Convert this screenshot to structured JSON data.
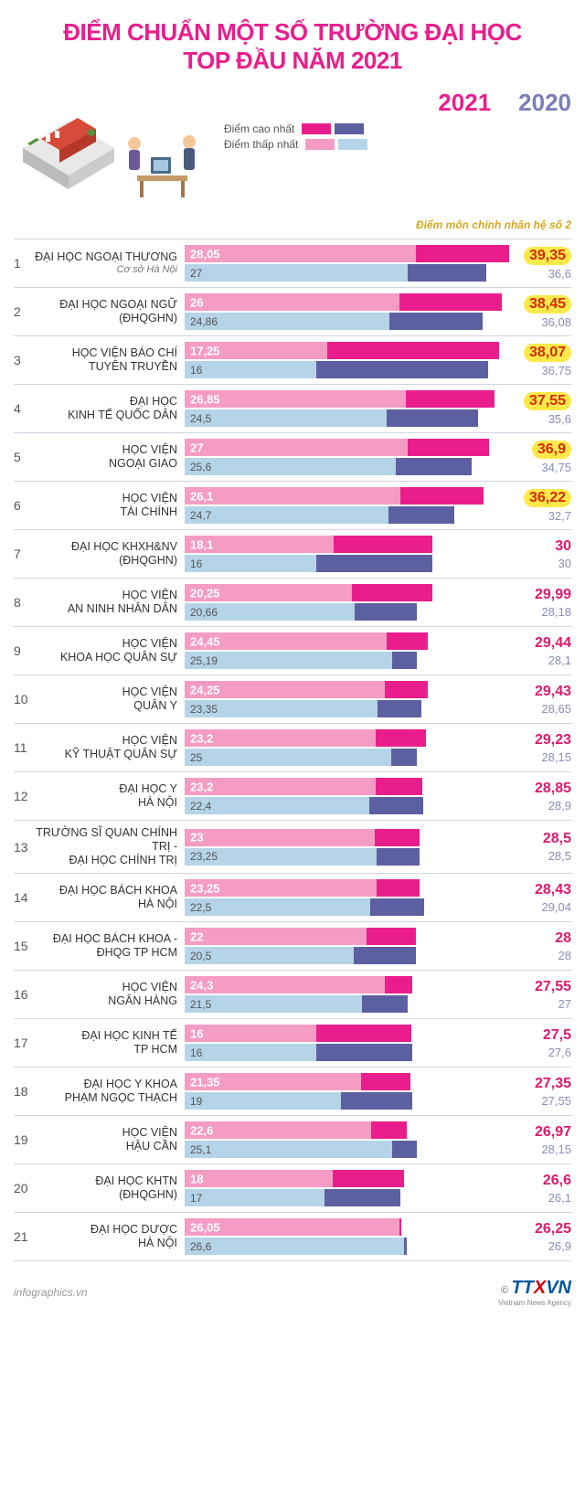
{
  "title_line1": "ĐIỂM CHUẨN MỘT SỐ TRƯỜNG ĐẠI HỌC",
  "title_line2": "TOP ĐẦU NĂM 2021",
  "legend": {
    "year_2021": "2021",
    "year_2020": "2020",
    "highest": "Điểm cao nhất",
    "lowest": "Điểm thấp nhất",
    "note": "Điểm môn chính nhân hệ số 2"
  },
  "colors": {
    "hi_2021": "#e91e8c",
    "lo_2021": "#f59cc4",
    "hi_2020": "#5c5fa0",
    "lo_2020": "#b5d4e8",
    "highlight_bg": "#ffe94a",
    "max_2021_text": "#e0186f",
    "max_2021_hl_text": "#d42a00",
    "max_2020_text": "#8a8db8"
  },
  "scale_max": 40,
  "rows": [
    {
      "rank": "1",
      "name1": "ĐẠI HỌC NGOẠI THƯƠNG",
      "name2": "Cơ sở Hà Nội",
      "sub": true,
      "lo21": "28,05",
      "lo21v": 28.05,
      "lo20": "27",
      "lo20v": 27,
      "hi21": "39,35",
      "hi21v": 39.35,
      "hi20": "36,6",
      "hi20v": 36.6,
      "hl": true
    },
    {
      "rank": "2",
      "name1": "ĐẠI HỌC NGOẠI NGỮ",
      "name2": "(ĐHQGHN)",
      "lo21": "26",
      "lo21v": 26,
      "lo20": "24,86",
      "lo20v": 24.86,
      "hi21": "38,45",
      "hi21v": 38.45,
      "hi20": "36,08",
      "hi20v": 36.08,
      "hl": true
    },
    {
      "rank": "3",
      "name1": "HỌC VIỆN BÁO CHÍ",
      "name2": "TUYÊN TRUYỀN",
      "lo21": "17,25",
      "lo21v": 17.25,
      "lo20": "16",
      "lo20v": 16,
      "hi21": "38,07",
      "hi21v": 38.07,
      "hi20": "36,75",
      "hi20v": 36.75,
      "hl": true
    },
    {
      "rank": "4",
      "name1": "ĐẠI HỌC",
      "name2": "KINH TẾ QUỐC DÂN",
      "lo21": "26,85",
      "lo21v": 26.85,
      "lo20": "24,5",
      "lo20v": 24.5,
      "hi21": "37,55",
      "hi21v": 37.55,
      "hi20": "35,6",
      "hi20v": 35.6,
      "hl": true
    },
    {
      "rank": "5",
      "name1": "HỌC VIỆN",
      "name2": "NGOẠI GIAO",
      "lo21": "27",
      "lo21v": 27,
      "lo20": "25,6",
      "lo20v": 25.6,
      "hi21": "36,9",
      "hi21v": 36.9,
      "hi20": "34,75",
      "hi20v": 34.75,
      "hl": true
    },
    {
      "rank": "6",
      "name1": "HỌC VIỆN",
      "name2": "TÀI CHÍNH",
      "lo21": "26,1",
      "lo21v": 26.1,
      "lo20": "24,7",
      "lo20v": 24.7,
      "hi21": "36,22",
      "hi21v": 36.22,
      "hi20": "32,7",
      "hi20v": 32.7,
      "hl": true
    },
    {
      "rank": "7",
      "name1": "ĐẠI HỌC KHXH&NV",
      "name2": "(ĐHQGHN)",
      "lo21": "18,1",
      "lo21v": 18.1,
      "lo20": "16",
      "lo20v": 16,
      "hi21": "30",
      "hi21v": 30,
      "hi20": "30",
      "hi20v": 30,
      "hl": false
    },
    {
      "rank": "8",
      "name1": "HỌC VIỆN",
      "name2": "AN NINH NHÂN DÂN",
      "lo21": "20,25",
      "lo21v": 20.25,
      "lo20": "20,66",
      "lo20v": 20.66,
      "hi21": "29,99",
      "hi21v": 29.99,
      "hi20": "28,18",
      "hi20v": 28.18,
      "hl": false
    },
    {
      "rank": "9",
      "name1": "HỌC VIỆN",
      "name2": "KHOA HỌC QUÂN SỰ",
      "lo21": "24,45",
      "lo21v": 24.45,
      "lo20": "25,19",
      "lo20v": 25.19,
      "hi21": "29,44",
      "hi21v": 29.44,
      "hi20": "28,1",
      "hi20v": 28.1,
      "hl": false
    },
    {
      "rank": "10",
      "name1": "HỌC VIỆN",
      "name2": "QUÂN Y",
      "lo21": "24,25",
      "lo21v": 24.25,
      "lo20": "23,35",
      "lo20v": 23.35,
      "hi21": "29,43",
      "hi21v": 29.43,
      "hi20": "28,65",
      "hi20v": 28.65,
      "hl": false
    },
    {
      "rank": "11",
      "name1": "HỌC VIỆN",
      "name2": "KỸ THUẬT QUÂN SỰ",
      "lo21": "23,2",
      "lo21v": 23.2,
      "lo20": "25",
      "lo20v": 25,
      "hi21": "29,23",
      "hi21v": 29.23,
      "hi20": "28,15",
      "hi20v": 28.15,
      "hl": false
    },
    {
      "rank": "12",
      "name1": "ĐẠI HỌC Y",
      "name2": "HÀ NỘI",
      "lo21": "23,2",
      "lo21v": 23.2,
      "lo20": "22,4",
      "lo20v": 22.4,
      "hi21": "28,85",
      "hi21v": 28.85,
      "hi20": "28,9",
      "hi20v": 28.9,
      "hl": false
    },
    {
      "rank": "13",
      "name1": "TRƯỜNG SĨ QUAN CHÍNH TRỊ -",
      "name2": "ĐẠI HỌC CHÍNH TRỊ",
      "lo21": "23",
      "lo21v": 23,
      "lo20": "23,25",
      "lo20v": 23.25,
      "hi21": "28,5",
      "hi21v": 28.5,
      "hi20": "28,5",
      "hi20v": 28.5,
      "hl": false
    },
    {
      "rank": "14",
      "name1": "ĐẠI HỌC BÁCH KHOA",
      "name2": "HÀ NỘI",
      "lo21": "23,25",
      "lo21v": 23.25,
      "lo20": "22,5",
      "lo20v": 22.5,
      "hi21": "28,43",
      "hi21v": 28.43,
      "hi20": "29,04",
      "hi20v": 29.04,
      "hl": false
    },
    {
      "rank": "15",
      "name1": "ĐẠI HỌC BÁCH KHOA -",
      "name2": "ĐHQG TP HCM",
      "lo21": "22",
      "lo21v": 22,
      "lo20": "20,5",
      "lo20v": 20.5,
      "hi21": "28",
      "hi21v": 28,
      "hi20": "28",
      "hi20v": 28,
      "hl": false
    },
    {
      "rank": "16",
      "name1": "HỌC VIỆN",
      "name2": "NGÂN HÀNG",
      "lo21": "24,3",
      "lo21v": 24.3,
      "lo20": "21,5",
      "lo20v": 21.5,
      "hi21": "27,55",
      "hi21v": 27.55,
      "hi20": "27",
      "hi20v": 27,
      "hl": false
    },
    {
      "rank": "17",
      "name1": "ĐẠI HỌC KINH TẾ",
      "name2": "TP HCM",
      "lo21": "16",
      "lo21v": 16,
      "lo20": "16",
      "lo20v": 16,
      "hi21": "27,5",
      "hi21v": 27.5,
      "hi20": "27,6",
      "hi20v": 27.6,
      "hl": false
    },
    {
      "rank": "18",
      "name1": "ĐẠI HỌC Y KHOA",
      "name2": "PHẠM NGỌC THẠCH",
      "lo21": "21,35",
      "lo21v": 21.35,
      "lo20": "19",
      "lo20v": 19,
      "hi21": "27,35",
      "hi21v": 27.35,
      "hi20": "27,55",
      "hi20v": 27.55,
      "hl": false
    },
    {
      "rank": "19",
      "name1": "HỌC VIỆN",
      "name2": "HẬU CẦN",
      "lo21": "22,6",
      "lo21v": 22.6,
      "lo20": "25,1",
      "lo20v": 25.1,
      "hi21": "26,97",
      "hi21v": 26.97,
      "hi20": "28,15",
      "hi20v": 28.15,
      "hl": false
    },
    {
      "rank": "20",
      "name1": "ĐẠI HỌC KHTN",
      "name2": "(ĐHQGHN)",
      "lo21": "18",
      "lo21v": 18,
      "lo20": "17",
      "lo20v": 17,
      "hi21": "26,6",
      "hi21v": 26.6,
      "hi20": "26,1",
      "hi20v": 26.1,
      "hl": false
    },
    {
      "rank": "21",
      "name1": "ĐẠI HỌC DƯỢC",
      "name2": "HÀ NỘI",
      "lo21": "26,05",
      "lo21v": 26.05,
      "lo20": "26,6",
      "lo20v": 26.6,
      "hi21": "26,25",
      "hi21v": 26.25,
      "hi20": "26,9",
      "hi20v": 26.9,
      "hl": false
    }
  ],
  "footer": {
    "source": "infographics.vn",
    "copyright": "©",
    "logo1": "TT",
    "logo2": "X",
    "logo3": "VN",
    "agency": "Vietnam News Agency"
  }
}
